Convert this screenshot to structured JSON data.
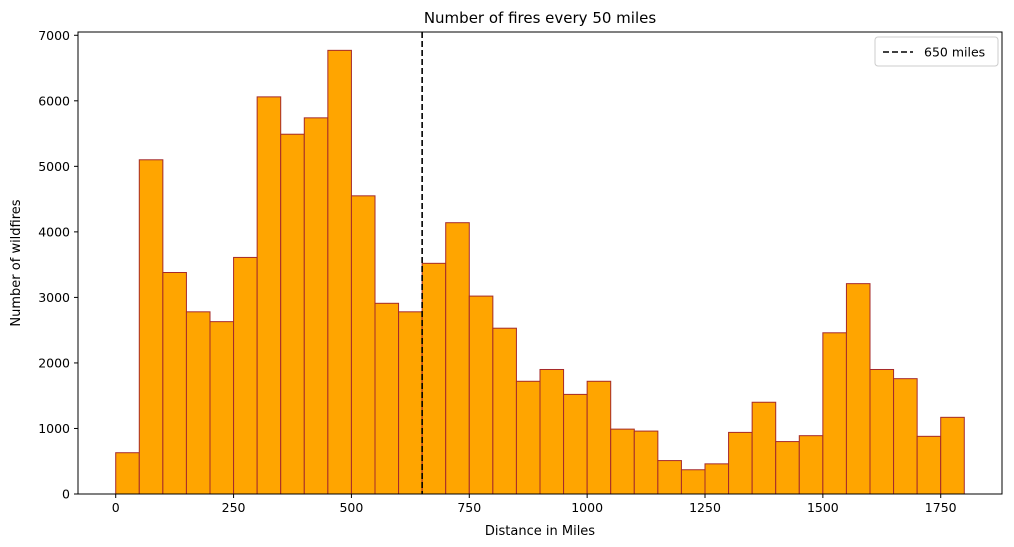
{
  "chart_data": {
    "type": "bar",
    "title": "Number of fires every 50 miles",
    "xlabel": "Distance in Miles",
    "ylabel": "Number of wildfires",
    "bin_width": 50,
    "bin_starts": [
      0,
      50,
      100,
      150,
      200,
      250,
      300,
      350,
      400,
      450,
      500,
      550,
      600,
      650,
      700,
      750,
      800,
      850,
      900,
      950,
      1000,
      1050,
      1100,
      1150,
      1200,
      1250,
      1300,
      1350,
      1400,
      1450,
      1500,
      1550,
      1600,
      1650,
      1700,
      1750
    ],
    "values": [
      630,
      5100,
      3380,
      2780,
      2630,
      3610,
      6060,
      5490,
      5740,
      6770,
      4550,
      2910,
      2780,
      3520,
      4140,
      3020,
      2530,
      1720,
      1900,
      1520,
      1720,
      990,
      960,
      510,
      370,
      460,
      940,
      1400,
      800,
      890,
      2460,
      3210,
      1900,
      1760,
      880,
      1170
    ],
    "xlim": [
      -80,
      1880
    ],
    "ylim": [
      0,
      7050
    ],
    "xticks": [
      0,
      250,
      500,
      750,
      1000,
      1250,
      1500,
      1750
    ],
    "xtick_labels": [
      "0",
      "250",
      "500",
      "750",
      "1000",
      "1250",
      "1500",
      "1750"
    ],
    "yticks": [
      0,
      1000,
      2000,
      3000,
      4000,
      5000,
      6000,
      7000
    ],
    "ytick_labels": [
      "0",
      "1000",
      "2000",
      "3000",
      "4000",
      "5000",
      "6000",
      "7000"
    ],
    "bar_color": "#FFA500",
    "edge_color": "#A52A2A",
    "vline": {
      "x": 650,
      "label": "650 miles",
      "color": "#000000",
      "style": "dashed"
    },
    "legend_position": "top-right",
    "grid": false
  }
}
